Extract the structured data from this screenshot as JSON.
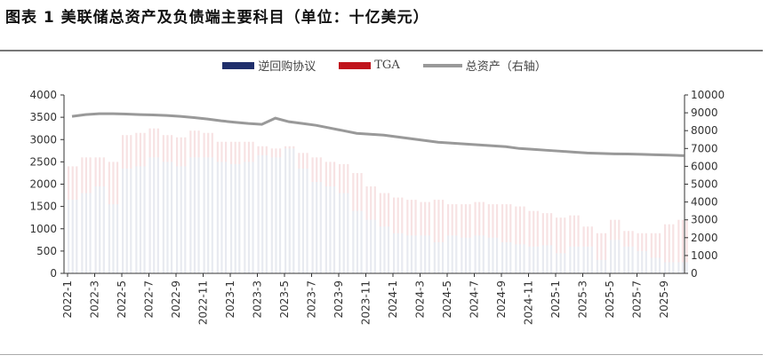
{
  "title": "图表 1  美联储总资产及负债端主要科目（单位：十亿美元）",
  "chart_data": {
    "type": "bar",
    "stacked": true,
    "legend_position": "top",
    "grid": false,
    "colors": {
      "rrp": "#1f2f6b",
      "tga": "#c0141c",
      "assets": "#999999"
    },
    "series": [
      {
        "name": "逆回购协议",
        "axis": "left",
        "values": [
          1650,
          1800,
          1950,
          1550,
          2350,
          2400,
          2600,
          2500,
          2400,
          2600,
          2600,
          2500,
          2450,
          2500,
          2650,
          2600,
          2800,
          2350,
          2050,
          1950,
          1800,
          1400,
          1200,
          1050,
          900,
          850,
          850,
          700,
          850,
          800,
          850,
          800,
          700,
          650,
          600,
          630,
          450,
          600,
          600,
          300,
          750,
          600,
          500,
          350,
          250,
          250
        ]
      },
      {
        "name": "TGA",
        "axis": "left",
        "values": [
          750,
          800,
          650,
          950,
          750,
          750,
          650,
          600,
          650,
          600,
          550,
          450,
          500,
          450,
          200,
          200,
          50,
          350,
          550,
          550,
          650,
          850,
          750,
          750,
          800,
          800,
          750,
          950,
          700,
          750,
          750,
          750,
          850,
          850,
          800,
          720,
          800,
          700,
          450,
          600,
          450,
          350,
          400,
          550,
          850,
          950
        ]
      },
      {
        "name": "总资产（右轴）",
        "axis": "right",
        "type": "line",
        "values": [
          8800,
          8900,
          8950,
          8950,
          8930,
          8900,
          8880,
          8850,
          8800,
          8730,
          8650,
          8550,
          8470,
          8400,
          8350,
          8700,
          8500,
          8400,
          8300,
          8150,
          8000,
          7850,
          7800,
          7750,
          7650,
          7550,
          7450,
          7350,
          7300,
          7250,
          7200,
          7150,
          7100,
          7000,
          6950,
          6900,
          6850,
          6800,
          6750,
          6720,
          6700,
          6690,
          6670,
          6650,
          6630,
          6600
        ]
      }
    ],
    "categories": [
      "2022-1",
      "2022-2",
      "2022-3",
      "2022-4",
      "2022-5",
      "2022-6",
      "2022-7",
      "2022-8",
      "2022-9",
      "2022-10",
      "2022-11",
      "2022-12",
      "2023-1",
      "2023-2",
      "2023-3",
      "2023-4",
      "2023-5",
      "2023-6",
      "2023-7",
      "2023-8",
      "2023-9",
      "2023-10",
      "2023-11",
      "2023-12",
      "2024-1",
      "2024-2",
      "2024-3",
      "2024-4",
      "2024-5",
      "2024-6",
      "2024-7",
      "2024-8",
      "2024-9",
      "2024-10",
      "2024-11",
      "2024-12",
      "2025-1",
      "2025-2",
      "2025-3",
      "2025-4",
      "2025-5",
      "2025-6",
      "2025-7",
      "2025-8",
      "2025-9",
      "2025-10"
    ],
    "x_tick_labels": [
      "2022-1",
      "2022-3",
      "2022-5",
      "2022-7",
      "2022-9",
      "2022-11",
      "2023-1",
      "2023-3",
      "2023-5",
      "2023-7",
      "2023-9",
      "2023-11",
      "2024-1",
      "2024-3",
      "2024-5",
      "2024-7",
      "2024-9",
      "2024-11",
      "2025-1",
      "2025-3",
      "2025-5",
      "2025-7",
      "2025-9"
    ],
    "ylim_left": [
      0,
      4000
    ],
    "yticks_left": [
      "0",
      "500",
      "1000",
      "1500",
      "2000",
      "2500",
      "3000",
      "3500",
      "4000"
    ],
    "ylim_right": [
      0,
      10000
    ],
    "yticks_right": [
      "0",
      "1000",
      "2000",
      "3000",
      "4000",
      "5000",
      "6000",
      "7000",
      "8000",
      "9000",
      "10000"
    ]
  }
}
